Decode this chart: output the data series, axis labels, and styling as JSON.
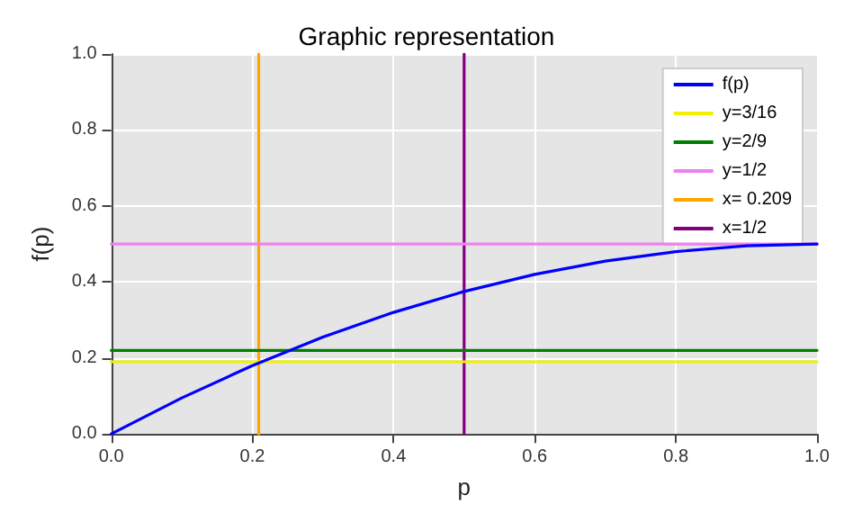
{
  "chart_data": {
    "type": "line",
    "title": "Graphic representation",
    "xlabel": "p",
    "ylabel": "f(p)",
    "xlim": [
      0,
      1
    ],
    "ylim": [
      0,
      1
    ],
    "xticks": [
      {
        "value": 0,
        "label": "0.0"
      },
      {
        "value": 0.2,
        "label": "0.2"
      },
      {
        "value": 0.4,
        "label": "0.4"
      },
      {
        "value": 0.6,
        "label": "0.6"
      },
      {
        "value": 0.8,
        "label": "0.8"
      },
      {
        "value": 1,
        "label": "1.0"
      }
    ],
    "yticks": [
      {
        "value": 0,
        "label": "0.0"
      },
      {
        "value": 0.2,
        "label": "0.2"
      },
      {
        "value": 0.4,
        "label": "0.4"
      },
      {
        "value": 0.6,
        "label": "0.6"
      },
      {
        "value": 0.8,
        "label": "0.8"
      },
      {
        "value": 1,
        "label": "1.0"
      }
    ],
    "grid": true,
    "legend": "top right",
    "marker": "none",
    "line_style": "solid",
    "series": [
      {
        "name": "f(p)",
        "color": "#0000ff",
        "x": [
          0,
          0.1,
          0.2,
          0.3,
          0.4,
          0.5,
          0.6,
          0.7,
          0.8,
          0.9,
          1
        ],
        "values": [
          0,
          0.095,
          0.18,
          0.255,
          0.32,
          0.375,
          0.42,
          0.455,
          0.48,
          0.495,
          0.5
        ]
      },
      {
        "name": "y=3/16",
        "color": "#f0f000",
        "x": [
          0,
          1
        ],
        "values": [
          0.19,
          0.19
        ]
      },
      {
        "name": "y=2/9",
        "color": "#008000",
        "x": [
          0,
          1
        ],
        "values": [
          0.22,
          0.22
        ]
      },
      {
        "name": "y=1/2",
        "color": "#ee82ee",
        "x": [
          0,
          1
        ],
        "values": [
          0.5,
          0.5
        ]
      },
      {
        "name": "x= 0.209",
        "color": "#ffa500",
        "x": [
          0.209,
          0.209
        ],
        "values": [
          0,
          1
        ]
      },
      {
        "name": "x=1/2",
        "color": "#800080",
        "x": [
          0.5,
          0.5
        ],
        "values": [
          0,
          1
        ]
      }
    ]
  }
}
